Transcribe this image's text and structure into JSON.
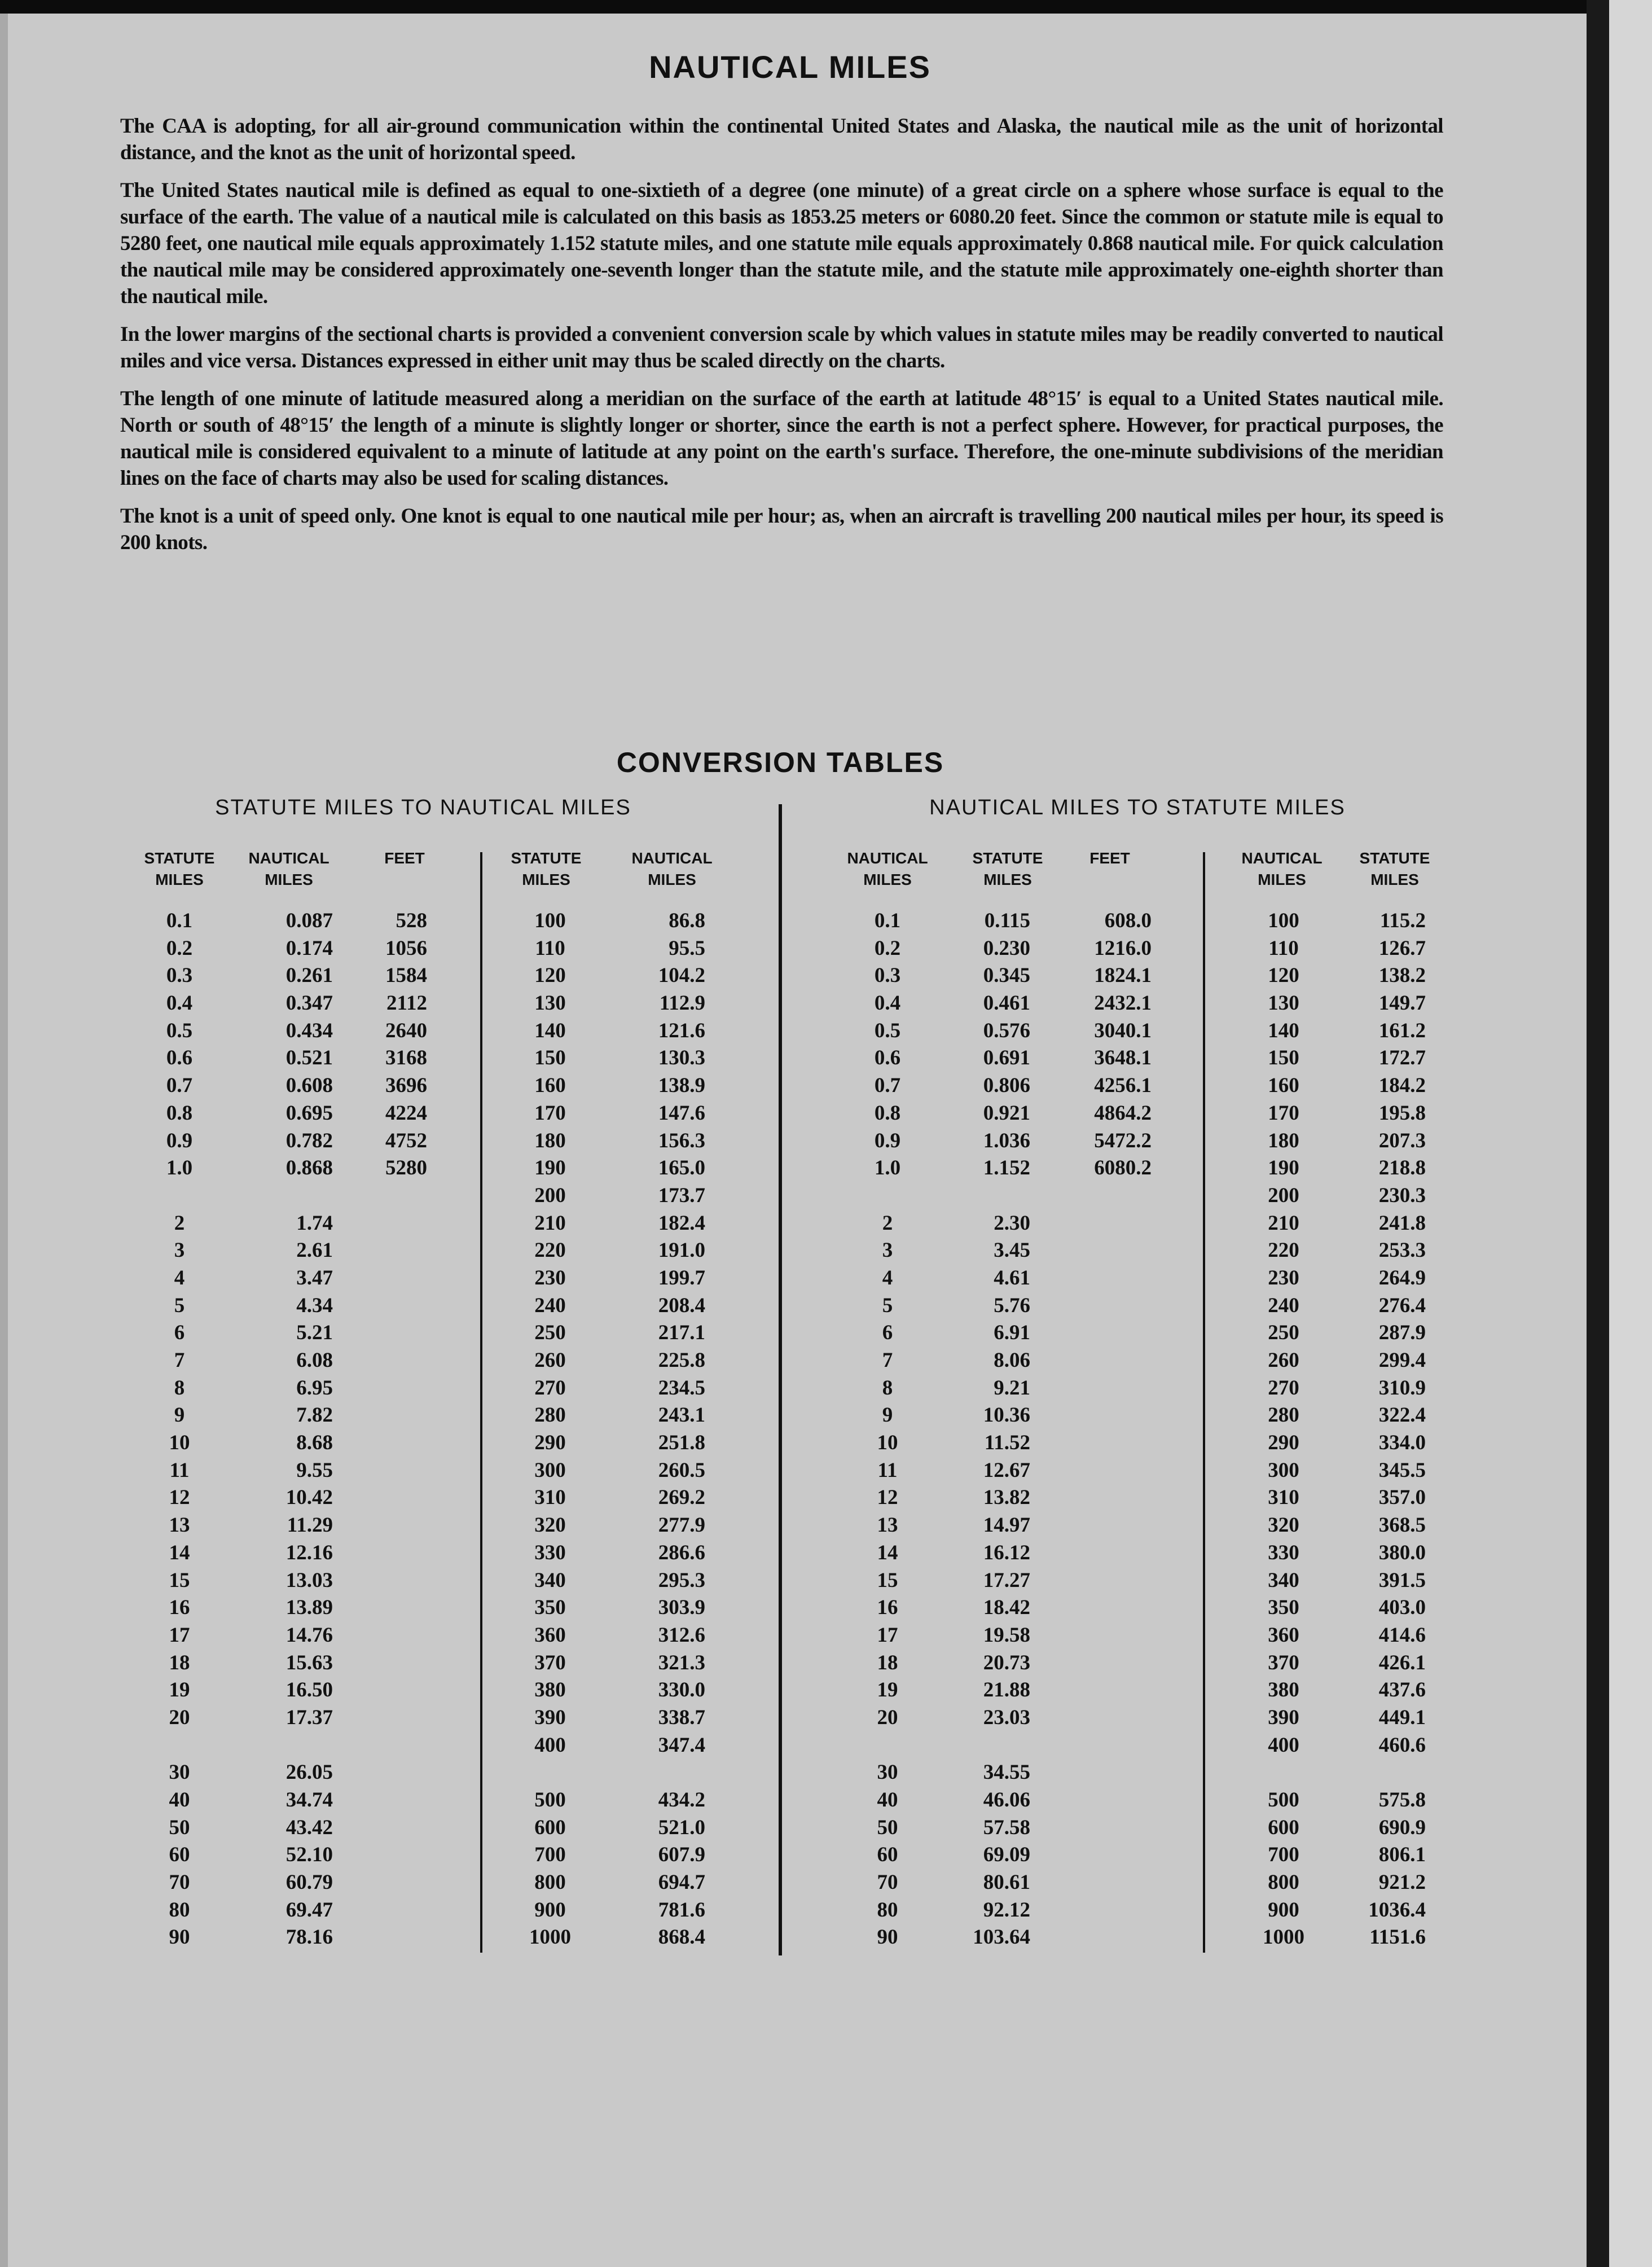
{
  "title": "NAUTICAL MILES",
  "paragraphs": [
    "The CAA is adopting, for all air-ground communication within the continental United States and Alaska, the nautical mile as the unit of horizontal distance, and the knot as the unit of horizontal speed.",
    "The United States nautical mile is defined as equal to one-sixtieth of a degree (one minute) of a great circle on a sphere whose surface is equal to the surface of the earth. The value of a nautical mile is calculated on this basis as 1853.25 meters or 6080.20 feet. Since the common or statute mile is equal to 5280 feet, one nautical mile equals approximately 1.152 statute miles, and one statute mile equals approximately 0.868 nautical mile. For quick calculation the nautical mile may be considered approximately one-seventh longer than the statute mile, and the statute mile approximately one-eighth shorter than the nautical mile.",
    "In the lower margins of the sectional charts is provided a convenient conversion scale by which values in statute miles may be readily converted to nautical miles and vice versa. Distances expressed in either unit may thus be scaled directly on the charts.",
    "The length of one minute of latitude measured along a meridian on the surface of the earth at latitude 48°15′ is equal to a United States nautical mile. North or south of 48°15′ the length of a minute is slightly longer or shorter, since the earth is not a perfect sphere. However, for practical purposes, the nautical mile is considered equivalent to a minute of latitude at any point on the earth's surface. Therefore, the one-minute subdivisions of the meridian lines on the face of charts may also be used for scaling distances.",
    "The knot is a unit of speed only. One knot is equal to one nautical mile per hour; as, when an aircraft is travelling 200 nautical miles per hour, its speed is 200 knots."
  ],
  "tables_title": "CONVERSION TABLES",
  "statute_to_nautical": {
    "heading": "STATUTE MILES TO NAUTICAL MILES",
    "headers": [
      "STATUTE\nMILES",
      "NAUTICAL\nMILES",
      "FEET",
      "STATUTE\nMILES",
      "NAUTICAL\nMILES"
    ],
    "statute": [
      "0.1",
      "0.2",
      "0.3",
      "0.4",
      "0.5",
      "0.6",
      "0.7",
      "0.8",
      "0.9",
      "1.0",
      "",
      "2",
      "3",
      "4",
      "5",
      "6",
      "7",
      "8",
      "9",
      "10",
      "11",
      "12",
      "13",
      "14",
      "15",
      "16",
      "17",
      "18",
      "19",
      "20",
      "",
      "30",
      "40",
      "50",
      "60",
      "70",
      "80",
      "90"
    ],
    "nautical": [
      "0.087",
      "0.174",
      "0.261",
      "0.347",
      "0.434",
      "0.521",
      "0.608",
      "0.695",
      "0.782",
      "0.868",
      "",
      "1.74",
      "2.61",
      "3.47",
      "4.34",
      "5.21",
      "6.08",
      "6.95",
      "7.82",
      "8.68",
      "9.55",
      "10.42",
      "11.29",
      "12.16",
      "13.03",
      "13.89",
      "14.76",
      "15.63",
      "16.50",
      "17.37",
      "",
      "26.05",
      "34.74",
      "43.42",
      "52.10",
      "60.79",
      "69.47",
      "78.16"
    ],
    "feet": [
      "528",
      "1056",
      "1584",
      "2112",
      "2640",
      "3168",
      "3696",
      "4224",
      "4752",
      "5280"
    ],
    "statute_2": [
      "100",
      "110",
      "120",
      "130",
      "140",
      "150",
      "160",
      "170",
      "180",
      "190",
      "200",
      "210",
      "220",
      "230",
      "240",
      "250",
      "260",
      "270",
      "280",
      "290",
      "300",
      "310",
      "320",
      "330",
      "340",
      "350",
      "360",
      "370",
      "380",
      "390",
      "400",
      "",
      "500",
      "600",
      "700",
      "800",
      "900",
      "1000"
    ],
    "nautical_2": [
      "86.8",
      "95.5",
      "104.2",
      "112.9",
      "121.6",
      "130.3",
      "138.9",
      "147.6",
      "156.3",
      "165.0",
      "173.7",
      "182.4",
      "191.0",
      "199.7",
      "208.4",
      "217.1",
      "225.8",
      "234.5",
      "243.1",
      "251.8",
      "260.5",
      "269.2",
      "277.9",
      "286.6",
      "295.3",
      "303.9",
      "312.6",
      "321.3",
      "330.0",
      "338.7",
      "347.4",
      "",
      "434.2",
      "521.0",
      "607.9",
      "694.7",
      "781.6",
      "868.4"
    ]
  },
  "nautical_to_statute": {
    "heading": "NAUTICAL MILES TO STATUTE MILES",
    "headers": [
      "NAUTICAL\nMILES",
      "STATUTE\nMILES",
      "FEET",
      "NAUTICAL\nMILES",
      "STATUTE\nMILES"
    ],
    "nautical": [
      "0.1",
      "0.2",
      "0.3",
      "0.4",
      "0.5",
      "0.6",
      "0.7",
      "0.8",
      "0.9",
      "1.0",
      "",
      "2",
      "3",
      "4",
      "5",
      "6",
      "7",
      "8",
      "9",
      "10",
      "11",
      "12",
      "13",
      "14",
      "15",
      "16",
      "17",
      "18",
      "19",
      "20",
      "",
      "30",
      "40",
      "50",
      "60",
      "70",
      "80",
      "90"
    ],
    "statute": [
      "0.115",
      "0.230",
      "0.345",
      "0.461",
      "0.576",
      "0.691",
      "0.806",
      "0.921",
      "1.036",
      "1.152",
      "",
      "2.30",
      "3.45",
      "4.61",
      "5.76",
      "6.91",
      "8.06",
      "9.21",
      "10.36",
      "11.52",
      "12.67",
      "13.82",
      "14.97",
      "16.12",
      "17.27",
      "18.42",
      "19.58",
      "20.73",
      "21.88",
      "23.03",
      "",
      "34.55",
      "46.06",
      "57.58",
      "69.09",
      "80.61",
      "92.12",
      "103.64"
    ],
    "feet": [
      "608.0",
      "1216.0",
      "1824.1",
      "2432.1",
      "3040.1",
      "3648.1",
      "4256.1",
      "4864.2",
      "5472.2",
      "6080.2"
    ],
    "nautical_2": [
      "100",
      "110",
      "120",
      "130",
      "140",
      "150",
      "160",
      "170",
      "180",
      "190",
      "200",
      "210",
      "220",
      "230",
      "240",
      "250",
      "260",
      "270",
      "280",
      "290",
      "300",
      "310",
      "320",
      "330",
      "340",
      "350",
      "360",
      "370",
      "380",
      "390",
      "400",
      "",
      "500",
      "600",
      "700",
      "800",
      "900",
      "1000"
    ],
    "statute_2": [
      "115.2",
      "126.7",
      "138.2",
      "149.7",
      "161.2",
      "172.7",
      "184.2",
      "195.8",
      "207.3",
      "218.8",
      "230.3",
      "241.8",
      "253.3",
      "264.9",
      "276.4",
      "287.9",
      "299.4",
      "310.9",
      "322.4",
      "334.0",
      "345.5",
      "357.0",
      "368.5",
      "380.0",
      "391.5",
      "403.0",
      "414.6",
      "426.1",
      "437.6",
      "449.1",
      "460.6",
      "",
      "575.8",
      "690.9",
      "806.1",
      "921.2",
      "1036.4",
      "1151.6"
    ]
  }
}
